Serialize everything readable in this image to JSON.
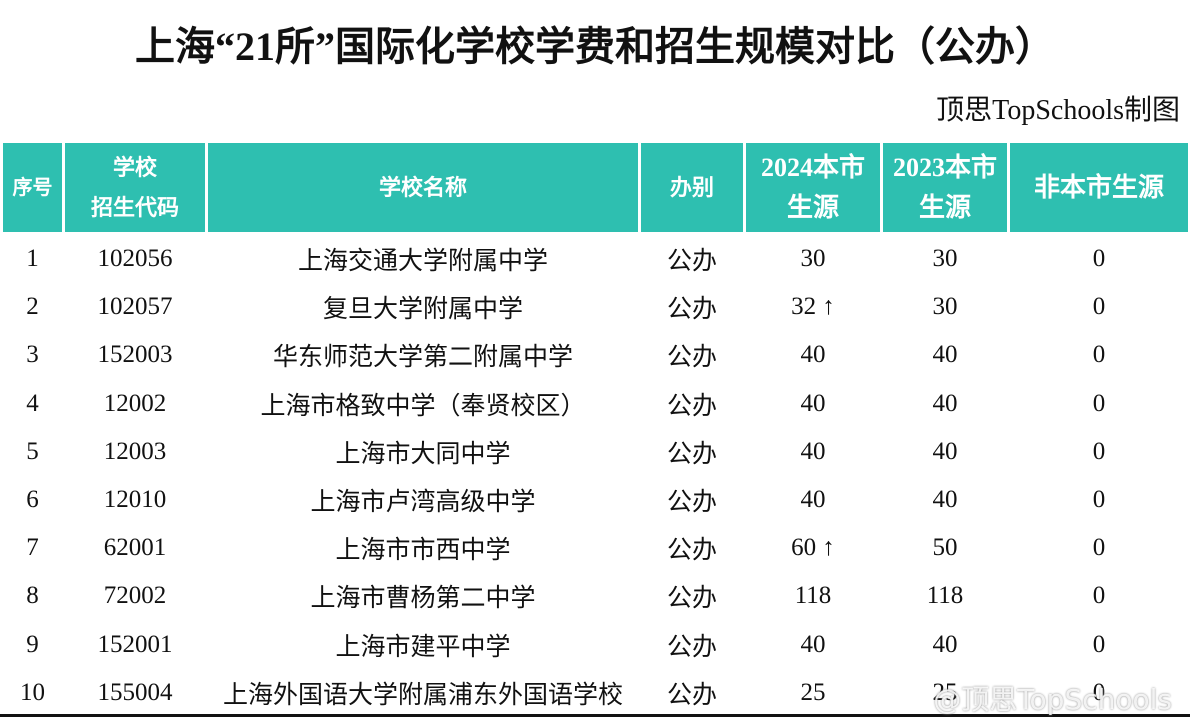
{
  "header": {
    "title": "上海“21所”国际化学校学费和招生规模对比（公办）",
    "credit": "顶思TopSchools制图"
  },
  "table": {
    "columns": [
      [
        "序号"
      ],
      [
        "学校",
        "招生代码"
      ],
      [
        "学校名称"
      ],
      [
        "办别"
      ],
      [
        "2024本市",
        "生源"
      ],
      [
        "2023本市",
        "生源"
      ],
      [
        "非本市生源"
      ]
    ],
    "rows": [
      [
        "1",
        "102056",
        "上海交通大学附属中学",
        "公办",
        "30",
        "30",
        "0"
      ],
      [
        "2",
        "102057",
        "复旦大学附属中学",
        "公办",
        "32 ↑",
        "30",
        "0"
      ],
      [
        "3",
        "152003",
        "华东师范大学第二附属中学",
        "公办",
        "40",
        "40",
        "0"
      ],
      [
        "4",
        "12002",
        "上海市格致中学（奉贤校区）",
        "公办",
        "40",
        "40",
        "0"
      ],
      [
        "5",
        "12003",
        "上海市大同中学",
        "公办",
        "40",
        "40",
        "0"
      ],
      [
        "6",
        "12010",
        "上海市卢湾高级中学",
        "公办",
        "40",
        "40",
        "0"
      ],
      [
        "7",
        "62001",
        "上海市市西中学",
        "公办",
        "60 ↑",
        "50",
        "0"
      ],
      [
        "8",
        "72002",
        "上海市曹杨第二中学",
        "公办",
        "118",
        "118",
        "0"
      ],
      [
        "9",
        "152001",
        "上海市建平中学",
        "公办",
        "40",
        "40",
        "0"
      ],
      [
        "10",
        "155004",
        "上海外国语大学附属浦东外国语学校",
        "公办",
        "25",
        "25",
        "0"
      ]
    ]
  },
  "watermark": "@顶思TopSchools"
}
